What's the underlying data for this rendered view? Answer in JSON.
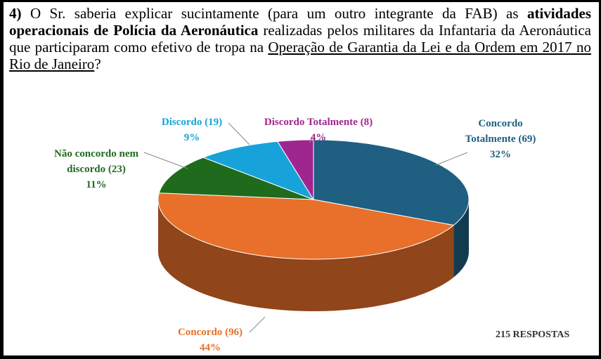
{
  "question": {
    "segments": [
      {
        "text": "4)",
        "style": "bold"
      },
      {
        "text": " O Sr. saberia explicar sucintamente (para um outro integrante da FAB) as ",
        "style": "normal"
      },
      {
        "text": "atividades operacionais de Polícia da Aeronáutica",
        "style": "bold"
      },
      {
        "text": " realizadas pelos militares da Infantaria da Aeronáutica que participaram como efetivo de tropa na ",
        "style": "normal"
      },
      {
        "text": "Operação de Garantia da Lei e da Ordem em 2017 no Rio de Janeiro",
        "style": "underline"
      },
      {
        "text": "?",
        "style": "normal"
      }
    ]
  },
  "chart_data": {
    "type": "pie3d",
    "categories": [
      "Concordo Totalmente",
      "Concordo",
      "Não concordo nem discordo",
      "Discordo",
      "Discordo Totalmente"
    ],
    "values": [
      69,
      96,
      23,
      19,
      8
    ],
    "value_labels": [
      "(69)",
      "(96)",
      "(23)",
      "(19)",
      "(8)"
    ],
    "percentages": [
      32,
      44,
      11,
      9,
      4
    ],
    "percentage_labels": [
      "32%",
      "44%",
      "11%",
      "9%",
      "4%"
    ],
    "colors": [
      "#1f5f82",
      "#e8702a",
      "#1e6b1e",
      "#17a3d9",
      "#a0268f"
    ],
    "annotation": "215 RESPOSTAS"
  }
}
